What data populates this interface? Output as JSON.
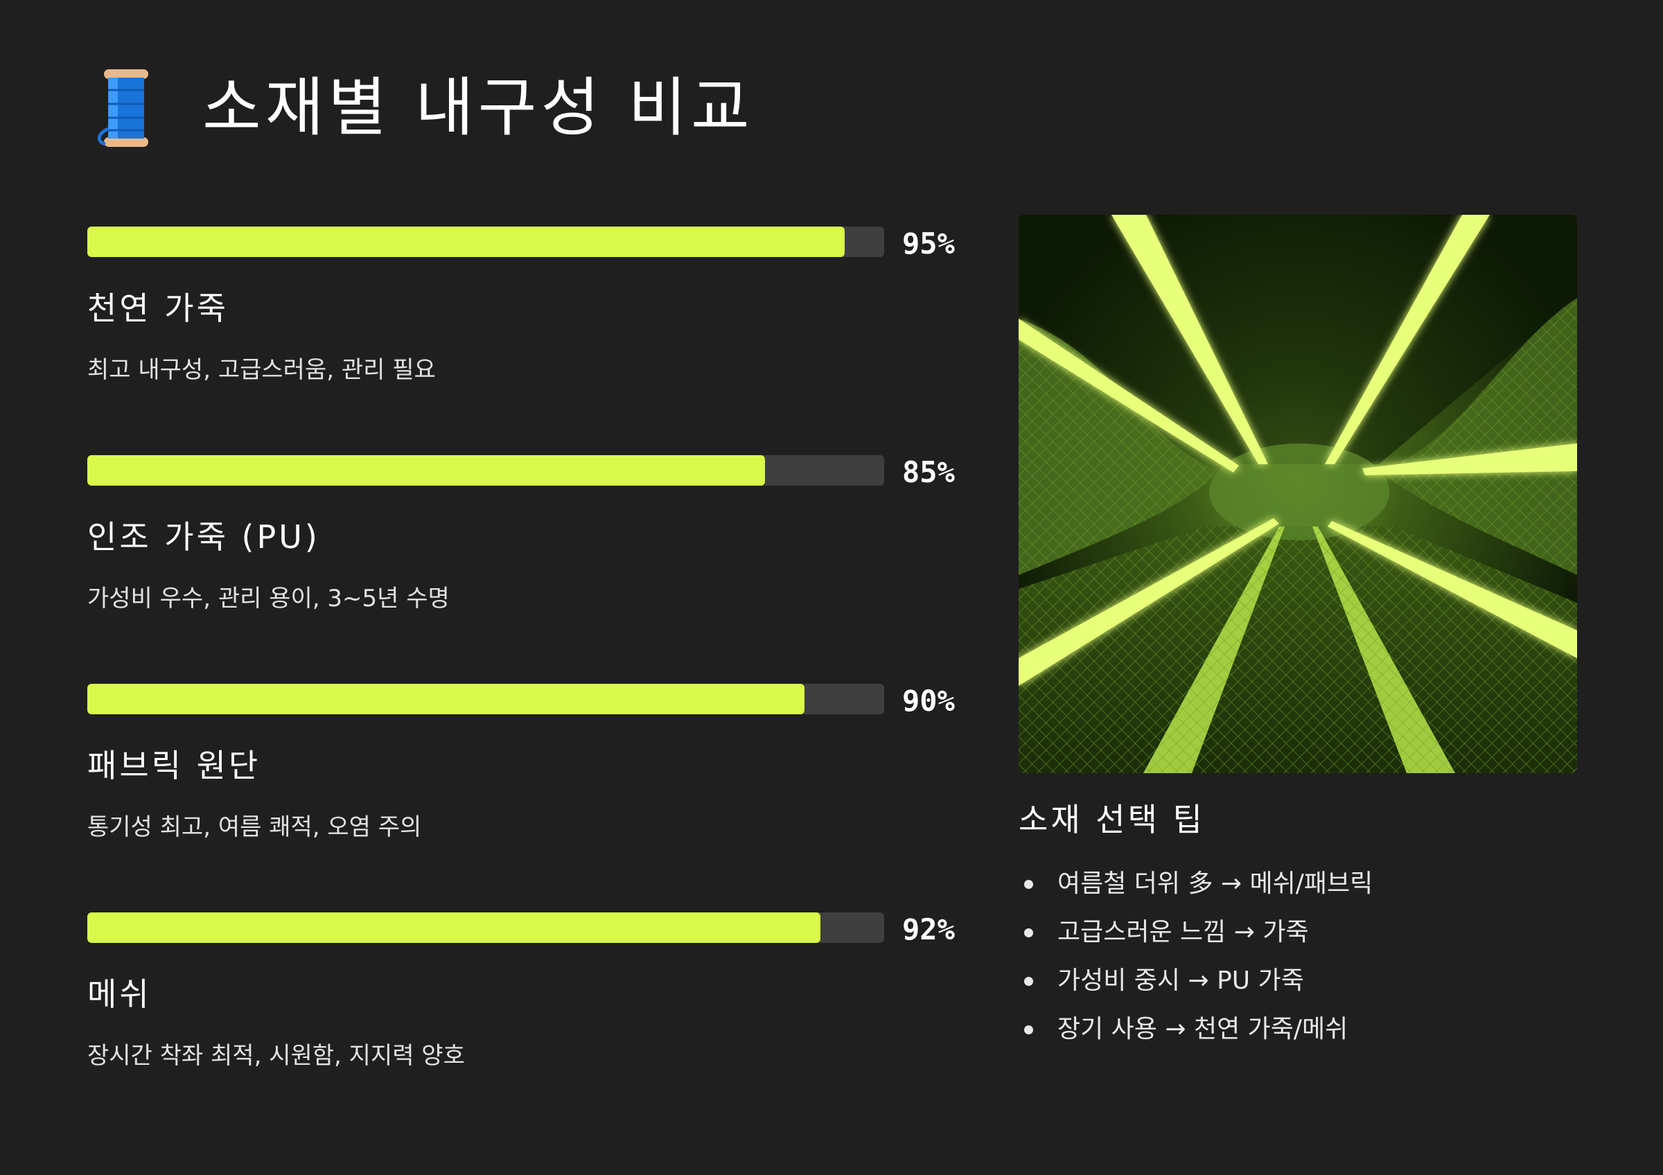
{
  "page": {
    "title": "소재별 내구성 비교",
    "title_icon": "thread-spool-icon"
  },
  "colors": {
    "background": "#1f1f1f",
    "bar_fill": "#d9fa4a",
    "bar_track": "#3f3f3f",
    "text": "#ffffff"
  },
  "materials": [
    {
      "name": "천연 가죽",
      "percent": 95,
      "percent_label": "95%",
      "description": "최고 내구성, 고급스러움, 관리 필요"
    },
    {
      "name": "인조 가죽 (PU)",
      "percent": 85,
      "percent_label": "85%",
      "description": "가성비 우수, 관리 용이, 3~5년 수명"
    },
    {
      "name": "패브릭 원단",
      "percent": 90,
      "percent_label": "90%",
      "description": "통기성 최고, 여름 쾌적, 오염 주의"
    },
    {
      "name": "메쉬",
      "percent": 92,
      "percent_label": "92%",
      "description": "장시간 착좌 최적, 시원함, 지지력 양호"
    }
  ],
  "tips": {
    "title": "소재 선택 팁",
    "items": [
      "여름철 더위 多 → 메쉬/패브릭",
      "고급스러운 느낌 → 가죽",
      "가성비 중시 → PU 가죽",
      "장기 사용 → 천연 가죽/메쉬"
    ]
  }
}
